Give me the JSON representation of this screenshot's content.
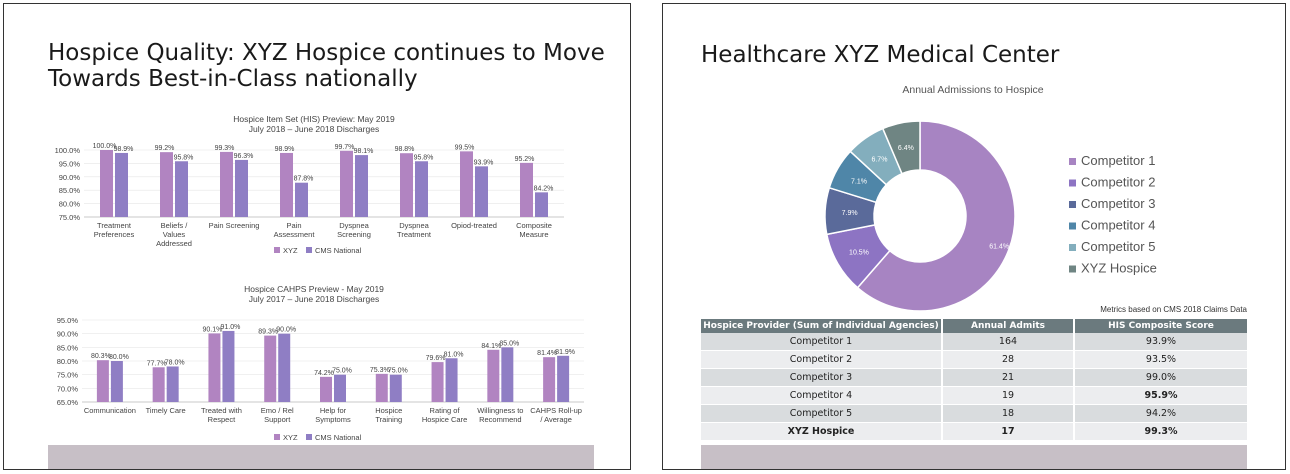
{
  "slide1": {
    "title": "Hospice Quality: XYZ Hospice continues to Move Towards Best-in-Class nationally",
    "chart1": {
      "title_line1": "Hospice Item Set (HIS) Preview: May 2019",
      "title_line2": "July 2018 – June 2018 Discharges",
      "yticks": [
        "100.0%",
        "95.0%",
        "90.0%",
        "85.0%",
        "80.0%",
        "75.0%"
      ],
      "legend": [
        "XYZ",
        "CMS National"
      ]
    },
    "chart2": {
      "title_line1": "Hospice CAHPS Preview - May 2019",
      "title_line2": "July 2017 – June 2018 Discharges",
      "yticks": [
        "95.0%",
        "90.0%",
        "85.0%",
        "80.0%",
        "75.0%",
        "70.0%",
        "65.0%"
      ],
      "legend": [
        "XYZ",
        "CMS National"
      ]
    }
  },
  "slide2": {
    "title": "Healthcare XYZ Medical Center",
    "donut_title": "Annual Admissions to Hospice",
    "metrics_note": "Metrics based on CMS 2018 Claims Data",
    "table": {
      "headers": [
        "Hospice Provider (Sum of Individual Agencies)",
        "Annual Admits",
        "HIS Composite Score"
      ],
      "rows": [
        [
          "Competitor 1",
          "164",
          "93.9%"
        ],
        [
          "Competitor 2",
          "28",
          "93.5%"
        ],
        [
          "Competitor 3",
          "21",
          "99.0%"
        ],
        [
          "Competitor 4",
          "19",
          "95.9%"
        ],
        [
          "Competitor 5",
          "18",
          "94.2%"
        ],
        [
          "XYZ Hospice",
          "17",
          "99.3%"
        ]
      ]
    }
  },
  "chart_data": [
    {
      "type": "bar",
      "title": "Hospice Item Set (HIS) Preview: May 2019",
      "subtitle": "July 2018 – June 2018 Discharges",
      "categories": [
        "Treatment Preferences",
        "Beliefs / Values Addressed",
        "Pain Screening",
        "Pain Assessment",
        "Dyspnea Screening",
        "Dyspnea Treatment",
        "Opiod-treated",
        "Composite Measure"
      ],
      "series": [
        {
          "name": "XYZ",
          "values": [
            100.0,
            99.2,
            99.3,
            98.9,
            99.7,
            98.8,
            99.5,
            95.2
          ],
          "labels": [
            "100.0%",
            "99.2%",
            "99.3%",
            "98.9%",
            "99.7%",
            "98.8%",
            "99.5%",
            "95.2%"
          ],
          "color": "#b184c1"
        },
        {
          "name": "CMS National",
          "values": [
            98.9,
            95.8,
            96.3,
            87.8,
            98.1,
            95.8,
            93.9,
            84.2
          ],
          "labels": [
            "98.9%",
            "95.8%",
            "96.3%",
            "87.8%",
            "98.1%",
            "95.8%",
            "93.9%",
            "84.2%"
          ],
          "color": "#8f7ec4"
        }
      ],
      "ylim": [
        75,
        100
      ],
      "legend_position": "bottom"
    },
    {
      "type": "bar",
      "title": "Hospice CAHPS Preview - May 2019",
      "subtitle": "July 2017 – June 2018 Discharges",
      "categories": [
        "Communication",
        "Timely Care",
        "Treated with Respect",
        "Emo / Rel Support",
        "Help for Symptoms",
        "Hospice Training",
        "Rating of Hospice Care",
        "Willingness to Recommend",
        "CAHPS Roll-up / Average"
      ],
      "series": [
        {
          "name": "XYZ",
          "values": [
            80.3,
            77.7,
            90.1,
            89.3,
            74.2,
            75.3,
            79.6,
            84.1,
            81.4
          ],
          "labels": [
            "80.3%",
            "77.7%",
            "90.1%",
            "89.3%",
            "74.2%",
            "75.3%",
            "79.6%",
            "84.1%",
            "81.4%"
          ],
          "color": "#b184c1"
        },
        {
          "name": "CMS National",
          "values": [
            80.0,
            78.0,
            91.0,
            90.0,
            75.0,
            75.0,
            81.0,
            85.0,
            81.9
          ],
          "labels": [
            "80.0%",
            "78.0%",
            "91.0%",
            "90.0%",
            "75.0%",
            "75.0%",
            "81.0%",
            "85.0%",
            "81.9%"
          ],
          "color": "#8f7ec4"
        }
      ],
      "ylim": [
        65,
        95
      ],
      "legend_position": "bottom"
    },
    {
      "type": "pie",
      "title": "Annual Admissions to Hospice",
      "categories": [
        "Competitor 1",
        "Competitor 2",
        "Competitor 3",
        "Competitor 4",
        "Competitor 5",
        "XYZ Hospice"
      ],
      "values": [
        61.4,
        10.5,
        7.9,
        7.1,
        6.7,
        6.4
      ],
      "labels": [
        "61.4%",
        "10.5%",
        "7.9%",
        "7.1%",
        "6.7%",
        "6.4%"
      ],
      "colors": [
        "#a784c2",
        "#8d74c3",
        "#5a6a9a",
        "#4f86a8",
        "#83aebd",
        "#6f8583"
      ],
      "legend_position": "right"
    }
  ]
}
